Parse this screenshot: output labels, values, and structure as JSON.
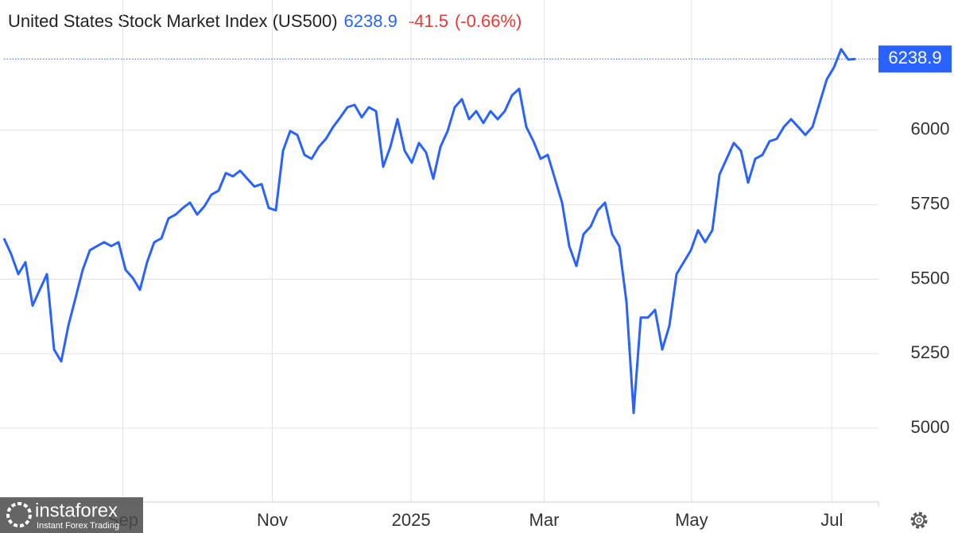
{
  "chart_data": {
    "type": "line",
    "title": "United States Stock Market Index (US500)",
    "change": -41.5,
    "change_percent": {
      "value": -0.66,
      "label": "(-0.66%)"
    },
    "color": "#2962ff",
    "change_color": "#e53935",
    "values": [
      5637,
      5584,
      5517,
      5557,
      5411,
      5464,
      5517,
      5264,
      5224,
      5344,
      5437,
      5531,
      5597,
      5611,
      5624,
      5611,
      5624,
      5531,
      5504,
      5464,
      5557,
      5624,
      5637,
      5704,
      5717,
      5739,
      5757,
      5717,
      5744,
      5784,
      5797,
      5856,
      5845,
      5864,
      5837,
      5811,
      5819,
      5739,
      5731,
      5931,
      5997,
      5984,
      5917,
      5904,
      5944,
      5971,
      6011,
      6043,
      6077,
      6085,
      6043,
      6077,
      6064,
      5877,
      5944,
      6037,
      5931,
      5891,
      5957,
      5925,
      5837,
      5944,
      5997,
      6077,
      6104,
      6037,
      6064,
      6024,
      6064,
      6037,
      6064,
      6117,
      6139,
      6011,
      5963,
      5904,
      5917,
      5837,
      5757,
      5611,
      5544,
      5651,
      5677,
      5731,
      5757,
      5651,
      5611,
      5424,
      5051,
      5371,
      5371,
      5397,
      5264,
      5344,
      5517,
      5557,
      5597,
      5664,
      5624,
      5664,
      5851,
      5904,
      5957,
      5931,
      5824,
      5904,
      5917,
      5963,
      5971,
      6011,
      6037,
      6011,
      5984,
      6011,
      6091,
      6171,
      6211,
      6272,
      6237,
      6238.9
    ],
    "xlim": [
      0,
      119
    ],
    "xticks": [
      {
        "value": 16.6,
        "label": "Sep"
      },
      {
        "value": 37.5,
        "label": "Nov"
      },
      {
        "value": 56.9,
        "label": "2025"
      },
      {
        "value": 75.5,
        "label": "Mar"
      },
      {
        "value": 96.1,
        "label": "May"
      },
      {
        "value": 115.7,
        "label": "Jul"
      }
    ],
    "ylim": [
      4752,
      6437
    ],
    "yticks": [
      5000,
      5250,
      5500,
      5750,
      6000
    ],
    "grid": true,
    "watermark": {
      "name": "instaforex",
      "tagline": "Instant Forex Trading"
    }
  }
}
